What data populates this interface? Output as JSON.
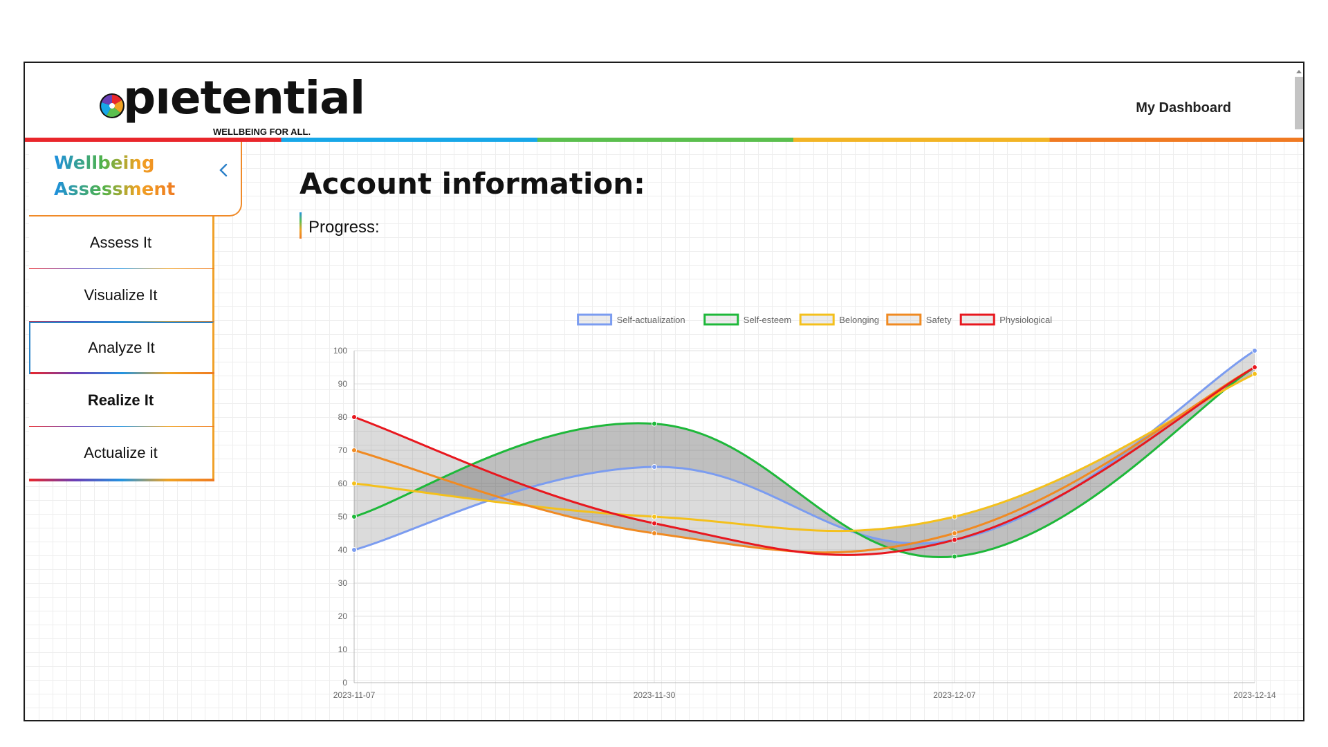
{
  "header": {
    "logo_text": "pıetential",
    "logo_tagline": "WELLBEING FOR ALL.",
    "dashboard_link": "My Dashboard"
  },
  "sidebar": {
    "title_line1": "Wellbeing",
    "title_line2": "Assessment",
    "collapse_icon": "chevron-left-icon",
    "items": [
      {
        "label": "Assess It"
      },
      {
        "label": "Visualize It"
      },
      {
        "label": "Analyze It"
      },
      {
        "label": "Realize It"
      },
      {
        "label": "Actualize it"
      }
    ]
  },
  "main": {
    "title": "Account information:",
    "progress_label": "Progress:"
  },
  "colors": {
    "self_actualization": "#7b9cf0",
    "self_esteem": "#1eb83a",
    "belonging": "#f4c01c",
    "safety": "#f08a22",
    "physiological": "#e8171e"
  },
  "chart_data": {
    "type": "line",
    "x": [
      "2023-11-07",
      "2023-11-30",
      "2023-12-07",
      "2023-12-14"
    ],
    "ylim": [
      0,
      100
    ],
    "yticks": [
      0,
      10,
      20,
      30,
      40,
      50,
      60,
      70,
      80,
      90,
      100
    ],
    "grid": true,
    "legend": "top-center",
    "fill": "between-series",
    "series": [
      {
        "name": "Self-actualization",
        "color": "#7b9cf0",
        "values": [
          40,
          65,
          43,
          100
        ]
      },
      {
        "name": "Self-esteem",
        "color": "#1eb83a",
        "values": [
          50,
          78,
          38,
          95
        ]
      },
      {
        "name": "Belonging",
        "color": "#f4c01c",
        "values": [
          60,
          50,
          50,
          93
        ]
      },
      {
        "name": "Safety",
        "color": "#f08a22",
        "values": [
          70,
          45,
          45,
          95
        ]
      },
      {
        "name": "Physiological",
        "color": "#e8171e",
        "values": [
          80,
          48,
          43,
          95
        ]
      }
    ]
  }
}
